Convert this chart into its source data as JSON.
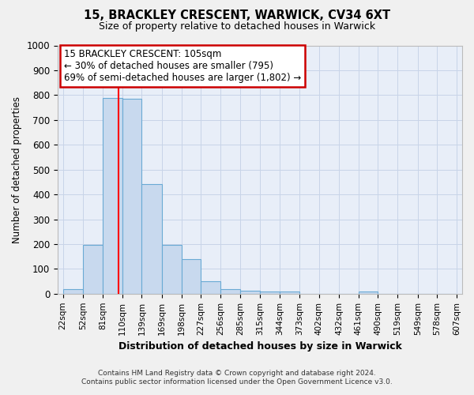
{
  "title": "15, BRACKLEY CRESCENT, WARWICK, CV34 6XT",
  "subtitle": "Size of property relative to detached houses in Warwick",
  "xlabel": "Distribution of detached houses by size in Warwick",
  "ylabel": "Number of detached properties",
  "bin_edges": [
    22,
    52,
    81,
    110,
    139,
    169,
    198,
    227,
    256,
    285,
    315,
    344,
    373,
    402,
    432,
    461,
    490,
    519,
    549,
    578,
    607
  ],
  "bar_heights": [
    20,
    197,
    790,
    785,
    443,
    197,
    140,
    50,
    18,
    12,
    10,
    10,
    0,
    0,
    0,
    10,
    0,
    0,
    0,
    0
  ],
  "bar_color": "#c8d9ee",
  "bar_edge_color": "#6aaad4",
  "bar_edge_width": 0.8,
  "grid_color": "#c8d4e8",
  "bg_color": "#e8eef8",
  "fig_bg_color": "#f0f0f0",
  "ylim": [
    0,
    1000
  ],
  "yticks": [
    0,
    100,
    200,
    300,
    400,
    500,
    600,
    700,
    800,
    900,
    1000
  ],
  "red_line_x": 105,
  "annotation_line1": "15 BRACKLEY CRESCENT: 105sqm",
  "annotation_line2": "← 30% of detached houses are smaller (795)",
  "annotation_line3": "69% of semi-detached houses are larger (1,802) →",
  "annotation_box_facecolor": "#ffffff",
  "annotation_box_edgecolor": "#cc0000",
  "footer_line1": "Contains HM Land Registry data © Crown copyright and database right 2024.",
  "footer_line2": "Contains public sector information licensed under the Open Government Licence v3.0."
}
